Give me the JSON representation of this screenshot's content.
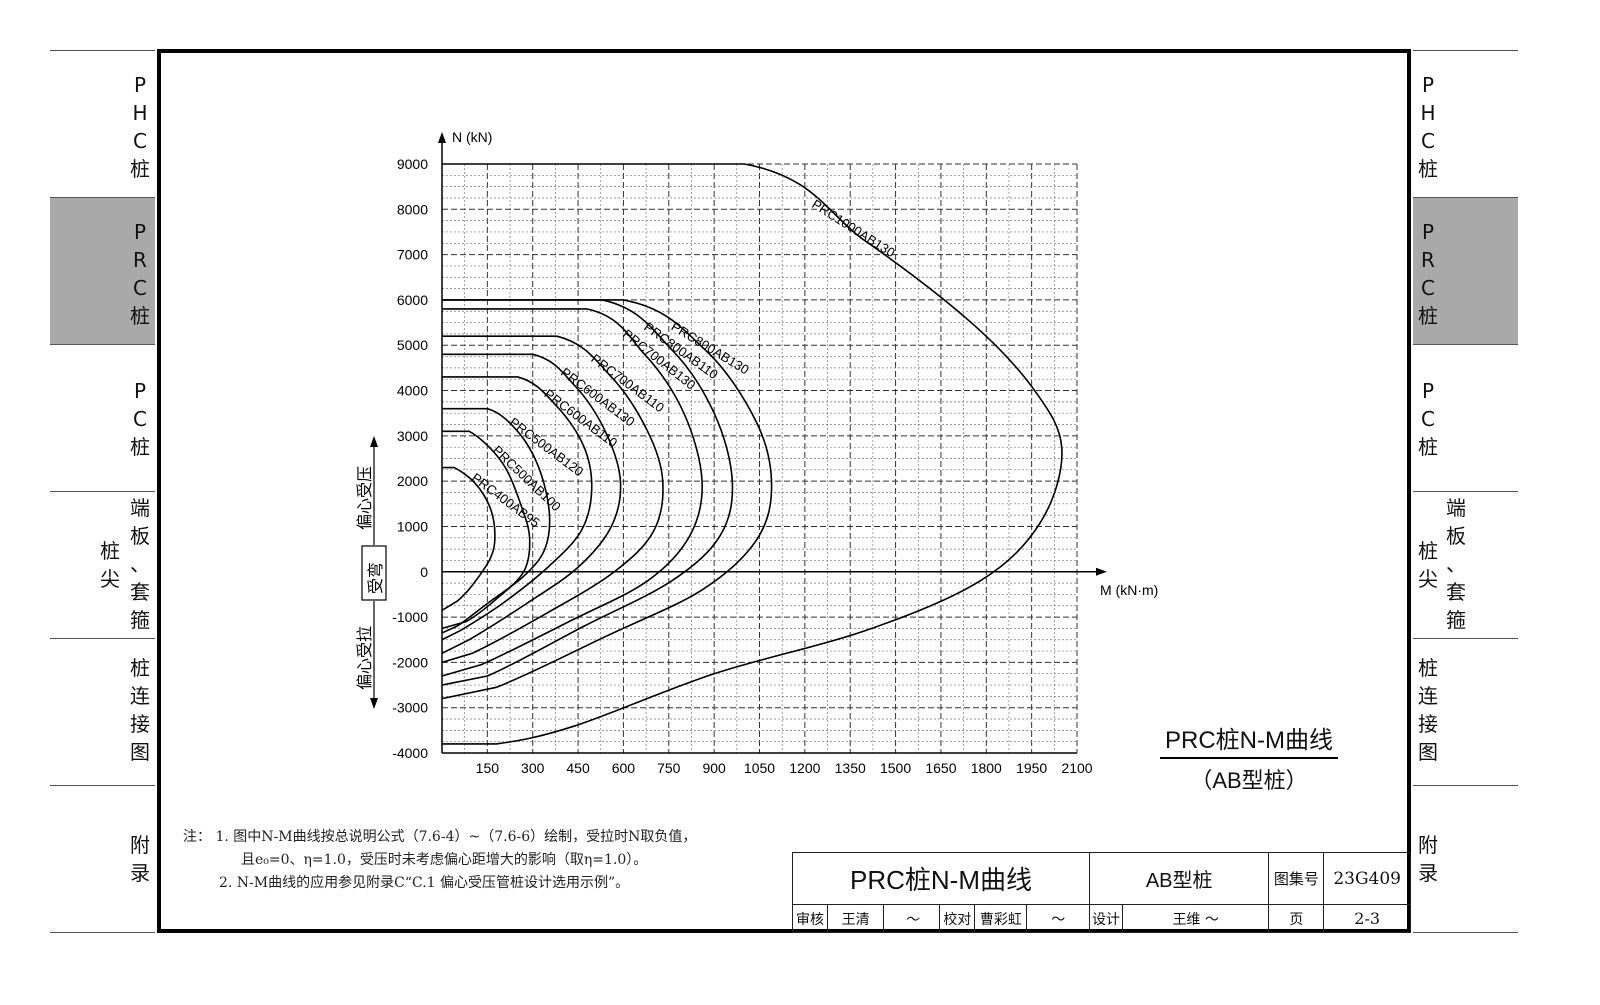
{
  "sidebar": {
    "items": [
      {
        "label": "PHC桩",
        "chars": [
          "P",
          "H",
          "C",
          "桩"
        ],
        "active": false
      },
      {
        "label": "PRC桩",
        "chars": [
          "P",
          "R",
          "C",
          "桩"
        ],
        "active": true
      },
      {
        "label": "PC桩",
        "chars": [
          "P",
          "C",
          "桩"
        ],
        "active": false
      },
      {
        "label": "端板、套箍 桩尖",
        "chars": [
          "端",
          "板",
          "、",
          "套",
          "箍"
        ],
        "chars2": [
          "桩",
          "尖"
        ],
        "active": false
      },
      {
        "label": "桩连接图",
        "chars": [
          "桩",
          "连",
          "接",
          "图"
        ],
        "active": false
      },
      {
        "label": "附录",
        "chars": [
          "附",
          "录"
        ],
        "active": false
      }
    ]
  },
  "plot_title": {
    "line1": "PRC桩N-M曲线",
    "line2": "（AB型桩）"
  },
  "notes": [
    "注：  1. 图中N-M曲线按总说明公式（7.6-4）~（7.6-6）绘制，受拉时N取负值，",
    "且e₀=0、η=1.0，受压时未考虑偏心距增大的影响（取η=1.0）。",
    "2. N-M曲线的应用参见附录C“C.1 偏心受压管桩设计选用示例”。"
  ],
  "title_block": {
    "drawing_title": "PRC桩N-M曲线",
    "pile_type": "AB型桩",
    "atlas_label": "图集号",
    "atlas_no": "23G409",
    "review_label": "审核",
    "reviewer": "王清",
    "check_label": "校对",
    "checker": "曹彩虹",
    "design_label": "设计",
    "designer": "王维",
    "page_label": "页",
    "page_no": "2-3"
  },
  "chart_data": {
    "type": "line",
    "xlabel": "M (kN·m)",
    "ylabel": "N (kN)",
    "xlim": [
      0,
      2100
    ],
    "ylim": [
      -4000,
      9000
    ],
    "x_ticks": [
      150,
      300,
      450,
      600,
      750,
      900,
      1050,
      1200,
      1350,
      1500,
      1650,
      1800,
      1950,
      2100
    ],
    "y_ticks": [
      9000,
      8000,
      7000,
      6000,
      5000,
      4000,
      3000,
      2000,
      1000,
      0,
      -1000,
      -2000,
      -3000,
      -4000
    ],
    "grid": true,
    "upper_arrow_label": "偏心受压",
    "middle_box_label": "受弯",
    "lower_arrow_label": "偏心受拉",
    "series": [
      {
        "name": "PRC400AB95",
        "points": [
          [
            0,
            2300
          ],
          [
            40,
            2300
          ],
          [
            110,
            1950
          ],
          [
            160,
            1400
          ],
          [
            175,
            800
          ],
          [
            160,
            300
          ],
          [
            100,
            -300
          ],
          [
            50,
            -650
          ],
          [
            0,
            -850
          ]
        ]
      },
      {
        "name": "PRC500AB100",
        "points": [
          [
            0,
            3100
          ],
          [
            90,
            3100
          ],
          [
            200,
            2400
          ],
          [
            265,
            1400
          ],
          [
            290,
            700
          ],
          [
            270,
            0
          ],
          [
            180,
            -600
          ],
          [
            80,
            -1100
          ],
          [
            0,
            -1250
          ]
        ]
      },
      {
        "name": "PRC500AB120",
        "points": [
          [
            0,
            3600
          ],
          [
            150,
            3600
          ],
          [
            250,
            3100
          ],
          [
            320,
            2300
          ],
          [
            355,
            1300
          ],
          [
            340,
            500
          ],
          [
            270,
            -100
          ],
          [
            150,
            -700
          ],
          [
            50,
            -1200
          ],
          [
            0,
            -1350
          ]
        ]
      },
      {
        "name": "PRC600AB110",
        "points": [
          [
            0,
            4300
          ],
          [
            250,
            4300
          ],
          [
            380,
            3650
          ],
          [
            470,
            2750
          ],
          [
            495,
            1800
          ],
          [
            460,
            900
          ],
          [
            350,
            100
          ],
          [
            200,
            -700
          ],
          [
            60,
            -1300
          ],
          [
            0,
            -1500
          ]
        ]
      },
      {
        "name": "PRC600AB130",
        "points": [
          [
            0,
            4800
          ],
          [
            300,
            4800
          ],
          [
            440,
            4100
          ],
          [
            540,
            3100
          ],
          [
            590,
            2000
          ],
          [
            560,
            1000
          ],
          [
            450,
            100
          ],
          [
            280,
            -700
          ],
          [
            90,
            -1500
          ],
          [
            0,
            -1800
          ]
        ]
      },
      {
        "name": "PRC700AB110",
        "points": [
          [
            0,
            5200
          ],
          [
            380,
            5200
          ],
          [
            560,
            4300
          ],
          [
            680,
            3100
          ],
          [
            730,
            2000
          ],
          [
            700,
            900
          ],
          [
            570,
            0
          ],
          [
            350,
            -900
          ],
          [
            100,
            -1800
          ],
          [
            0,
            -2000
          ]
        ]
      },
      {
        "name": "PRC700AB130",
        "points": [
          [
            0,
            5800
          ],
          [
            480,
            5800
          ],
          [
            670,
            4800
          ],
          [
            800,
            3500
          ],
          [
            860,
            2000
          ],
          [
            820,
            800
          ],
          [
            680,
            -200
          ],
          [
            420,
            -1100
          ],
          [
            130,
            -2050
          ],
          [
            0,
            -2300
          ]
        ]
      },
      {
        "name": "PRC800AB110",
        "points": [
          [
            0,
            6000
          ],
          [
            530,
            6000
          ],
          [
            760,
            4900
          ],
          [
            900,
            3500
          ],
          [
            960,
            2000
          ],
          [
            920,
            800
          ],
          [
            760,
            -200
          ],
          [
            470,
            -1200
          ],
          [
            150,
            -2300
          ],
          [
            0,
            -2500
          ]
        ]
      },
      {
        "name": "PRC800AB130",
        "points": [
          [
            0,
            6000
          ],
          [
            600,
            6000
          ],
          [
            870,
            4900
          ],
          [
            1040,
            3300
          ],
          [
            1090,
            1900
          ],
          [
            1040,
            700
          ],
          [
            860,
            -400
          ],
          [
            550,
            -1400
          ],
          [
            180,
            -2550
          ],
          [
            0,
            -2800
          ]
        ]
      },
      {
        "name": "PRC1000AB130",
        "points": [
          [
            0,
            9000
          ],
          [
            1000,
            9000
          ],
          [
            1400,
            7300
          ],
          [
            1750,
            5500
          ],
          [
            1960,
            4000
          ],
          [
            2050,
            2700
          ],
          [
            1980,
            1100
          ],
          [
            1780,
            -200
          ],
          [
            1400,
            -1300
          ],
          [
            900,
            -2250
          ],
          [
            440,
            -3400
          ],
          [
            180,
            -3800
          ],
          [
            0,
            -3800
          ]
        ]
      }
    ],
    "label_positions_note": "",
    "labels": [
      "PRC400AB95",
      "PRC500AB100",
      "PRC500AB120",
      "PRC600AB110",
      "PRC600AB130",
      "PRC700AB110",
      "PRC700AB130",
      "PRC800AB110",
      "PRC800AB130",
      "PRC1000AB130"
    ]
  }
}
